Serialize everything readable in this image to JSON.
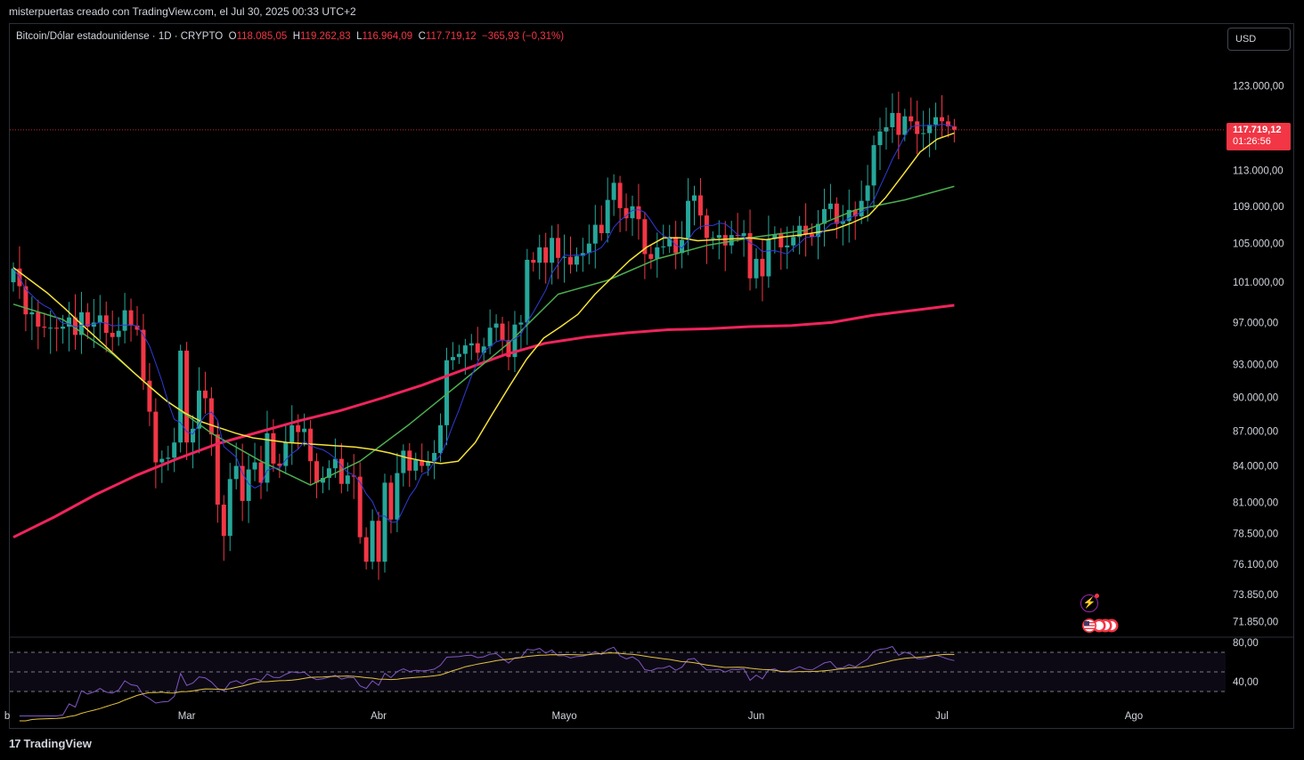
{
  "header": {
    "attribution": "misterpuertas creado con TradingView.com, el Jul 30, 2025 00:33 UTC+2"
  },
  "legend": {
    "symbol": "Bitcoin/Dólar estadounidense · 1D · CRYPTO",
    "o_label": "O",
    "o_value": "118.085,05",
    "h_label": "H",
    "h_value": "119.262,83",
    "l_label": "L",
    "l_value": "116.964,09",
    "c_label": "C",
    "c_value": "117.719,12",
    "change": "−365,93 (−0,31%)"
  },
  "currency_button": "USD",
  "price_badge": {
    "price": "117.719,12",
    "countdown": "01:26:56"
  },
  "footer": {
    "logo_text": "TradingView"
  },
  "colors": {
    "up": "#26a69a",
    "down": "#f23645",
    "ma_fast": "#2f3bd8",
    "ma_yellow": "#f5e23a",
    "ma_green": "#4caf50",
    "ma_red": "#f0245c",
    "rsi": "#7e57c2",
    "rsi_ma": "#e2c341"
  },
  "chart_data": {
    "type": "candlestick",
    "instrument": "Bitcoin/Dólar estadounidense",
    "interval": "1D",
    "y_ticks": [
      "123.000,00",
      "113.000,00",
      "109.000,00",
      "105.000,00",
      "101.000,00",
      "97.000,00",
      "93.000,00",
      "90.000,00",
      "87.000,00",
      "84.000,00",
      "81.000,00",
      "78.500,00",
      "76.100,00",
      "73.850,00",
      "71.850,00"
    ],
    "y_tick_values": [
      123000,
      113000,
      109000,
      105000,
      101000,
      97000,
      93000,
      90000,
      87000,
      84000,
      81000,
      78500,
      76100,
      73850,
      71850
    ],
    "scale": "log",
    "x_labels": [
      "b",
      "Mar",
      "Abr",
      "Mayo",
      "Jun",
      "Jul",
      "Ago"
    ],
    "x_label_days": [
      -1,
      28,
      59,
      89,
      120,
      150,
      181
    ],
    "start_date": "2025-02-01",
    "close_series": [
      [
        0,
        102400
      ],
      [
        1,
        100600
      ],
      [
        2,
        97800
      ],
      [
        3,
        98000
      ],
      [
        4,
        96600
      ],
      [
        5,
        96500
      ],
      [
        6,
        96500
      ],
      [
        7,
        96400
      ],
      [
        8,
        96600
      ],
      [
        9,
        97500
      ],
      [
        10,
        95800
      ],
      [
        11,
        98000
      ],
      [
        12,
        96600
      ],
      [
        13,
        97000
      ],
      [
        14,
        97700
      ],
      [
        15,
        96000
      ],
      [
        16,
        95600
      ],
      [
        17,
        96200
      ],
      [
        18,
        98200
      ],
      [
        19,
        96700
      ],
      [
        20,
        96300
      ],
      [
        21,
        91500
      ],
      [
        22,
        88700
      ],
      [
        23,
        84300
      ],
      [
        24,
        84600
      ],
      [
        25,
        84700
      ],
      [
        26,
        86000
      ],
      [
        27,
        94300
      ],
      [
        28,
        86000
      ],
      [
        29,
        87200
      ],
      [
        30,
        90600
      ],
      [
        31,
        89900
      ],
      [
        32,
        86700
      ],
      [
        33,
        80800
      ],
      [
        34,
        78300
      ],
      [
        35,
        82900
      ],
      [
        36,
        84000
      ],
      [
        37,
        81100
      ],
      [
        38,
        83700
      ],
      [
        39,
        84300
      ],
      [
        40,
        82600
      ],
      [
        41,
        86800
      ],
      [
        42,
        84200
      ],
      [
        43,
        84000
      ],
      [
        44,
        86000
      ],
      [
        45,
        87500
      ],
      [
        46,
        86900
      ],
      [
        47,
        87200
      ],
      [
        48,
        84400
      ],
      [
        49,
        82600
      ],
      [
        50,
        83000
      ],
      [
        51,
        83800
      ],
      [
        52,
        84600
      ],
      [
        53,
        82500
      ],
      [
        54,
        83200
      ],
      [
        55,
        83100
      ],
      [
        56,
        78200
      ],
      [
        57,
        76300
      ],
      [
        58,
        79500
      ],
      [
        59,
        76300
      ],
      [
        60,
        82600
      ],
      [
        61,
        79600
      ],
      [
        62,
        83400
      ],
      [
        63,
        85300
      ],
      [
        64,
        83600
      ],
      [
        65,
        84500
      ],
      [
        66,
        84000
      ],
      [
        67,
        84400
      ],
      [
        68,
        85100
      ],
      [
        69,
        87500
      ],
      [
        70,
        93400
      ],
      [
        71,
        93700
      ],
      [
        72,
        94000
      ],
      [
        73,
        94800
      ],
      [
        74,
        95000
      ],
      [
        75,
        94100
      ],
      [
        76,
        94700
      ],
      [
        77,
        96500
      ],
      [
        78,
        96900
      ],
      [
        79,
        95300
      ],
      [
        80,
        93700
      ],
      [
        81,
        96800
      ],
      [
        82,
        97000
      ],
      [
        83,
        103300
      ],
      [
        84,
        103000
      ],
      [
        85,
        104600
      ],
      [
        86,
        103000
      ],
      [
        87,
        105600
      ],
      [
        88,
        103500
      ],
      [
        89,
        103600
      ],
      [
        90,
        102800
      ],
      [
        91,
        103700
      ],
      [
        92,
        104000
      ],
      [
        93,
        105000
      ],
      [
        94,
        107000
      ],
      [
        95,
        106100
      ],
      [
        96,
        109700
      ],
      [
        97,
        111600
      ],
      [
        98,
        108800
      ],
      [
        99,
        107700
      ],
      [
        100,
        109000
      ],
      [
        101,
        107600
      ],
      [
        102,
        103900
      ],
      [
        103,
        103400
      ],
      [
        104,
        104600
      ],
      [
        105,
        104700
      ],
      [
        106,
        105700
      ],
      [
        107,
        104000
      ],
      [
        108,
        105400
      ],
      [
        109,
        109600
      ],
      [
        110,
        110200
      ],
      [
        111,
        108000
      ],
      [
        112,
        105600
      ],
      [
        113,
        105600
      ],
      [
        114,
        105900
      ],
      [
        115,
        104800
      ],
      [
        116,
        105900
      ],
      [
        117,
        105800
      ],
      [
        118,
        106100
      ],
      [
        119,
        101400
      ],
      [
        120,
        103400
      ],
      [
        121,
        101600
      ],
      [
        122,
        105500
      ],
      [
        123,
        106000
      ],
      [
        124,
        104600
      ],
      [
        125,
        104800
      ],
      [
        126,
        105700
      ],
      [
        127,
        106900
      ],
      [
        128,
        106000
      ],
      [
        129,
        105700
      ],
      [
        130,
        107100
      ],
      [
        131,
        108700
      ],
      [
        132,
        109300
      ],
      [
        133,
        107100
      ],
      [
        134,
        107400
      ],
      [
        135,
        108600
      ],
      [
        136,
        107900
      ],
      [
        137,
        109600
      ],
      [
        138,
        111300
      ],
      [
        139,
        115900
      ],
      [
        140,
        117500
      ],
      [
        141,
        118000
      ],
      [
        142,
        119700
      ],
      [
        143,
        117100
      ],
      [
        144,
        119300
      ],
      [
        145,
        118700
      ],
      [
        146,
        117200
      ],
      [
        147,
        117300
      ],
      [
        148,
        118300
      ],
      [
        149,
        119200
      ],
      [
        150,
        118700
      ],
      [
        151,
        118100
      ],
      [
        152,
        117700
      ]
    ],
    "moving_averages": [
      {
        "color": "yellow",
        "values": [
          102500,
          101200,
          99900,
          98400,
          96800,
          95300,
          93800,
          92300,
          90900,
          89600,
          88600,
          87800,
          87300,
          86800,
          86400,
          86200,
          86000,
          85900,
          85800,
          85700,
          85600,
          85400,
          85100,
          84700,
          84400,
          84200,
          84400,
          86000,
          88500,
          91000,
          93500,
          95500,
          96600,
          97800,
          99800,
          101500,
          103200,
          104600,
          105600,
          105600,
          105300,
          105400,
          105500,
          105600,
          105400,
          105700,
          105900,
          106200,
          106500,
          107200,
          108000,
          110000,
          112500,
          115100,
          116600,
          117300
        ]
      },
      {
        "color": "green",
        "values": [
          98800,
          97300,
          94000,
          90000,
          86800,
          84400,
          82400,
          84400,
          87600,
          91200,
          95000,
          99800,
          101200,
          103400,
          104800,
          105700,
          106400,
          108600,
          109700,
          111200
        ]
      },
      {
        "color": "red",
        "values": [
          78200,
          79800,
          81600,
          83200,
          84600,
          85900,
          86900,
          87900,
          88800,
          89900,
          91100,
          92500,
          93900,
          95000,
          95600,
          96000,
          96300,
          96400,
          96600,
          96700,
          97000,
          97700,
          98200,
          98700
        ]
      }
    ],
    "oscillator": {
      "type": "RSI",
      "y_ticks": [
        "80,00",
        "40,00"
      ],
      "y_tick_values": [
        80,
        40
      ],
      "bands": [
        70,
        50,
        30
      ]
    }
  }
}
